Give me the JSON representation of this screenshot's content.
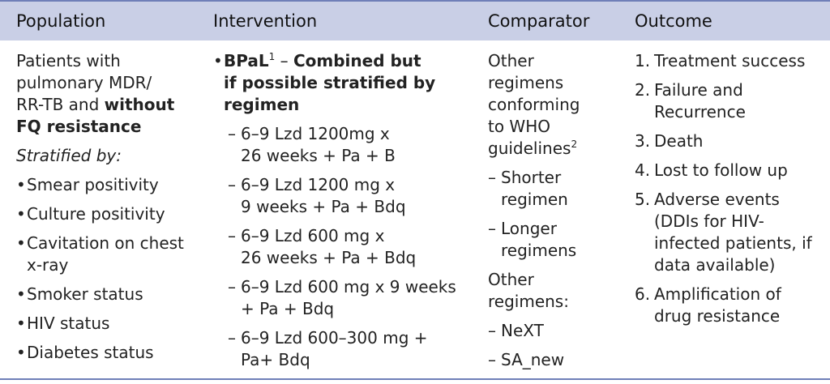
{
  "headers": [
    "Population",
    "Intervention",
    "Comparator",
    "Outcome"
  ],
  "population": {
    "intro": [
      "Patients with",
      "pulmonary MDR/",
      "RR-TB and "
    ],
    "intro_bold_1": "without",
    "intro_bold_2": "FQ resistance",
    "stratified": "Stratified by:",
    "strata": [
      "Smear positivity",
      "Culture positivity",
      "Cavitation on chest",
      "Smoker status",
      "HIV status",
      "Diabetes status"
    ],
    "strata_cont": "x-ray"
  },
  "intervention": {
    "title": "BPaL",
    "title_sup": "1",
    "title_dash": " – ",
    "title_bold": [
      "Combined but",
      "if possible stratified by",
      "regimen"
    ],
    "items": [
      [
        "6–9 Lzd 1200mg x",
        "26 weeks + Pa + B"
      ],
      [
        "6–9 Lzd 1200 mg x",
        "9 weeks + Pa + Bdq"
      ],
      [
        "6–9 Lzd 600 mg x",
        "26 weeks + Pa + Bdq"
      ],
      [
        "6–9 Lzd 600 mg x 9 weeks",
        "+ Pa + Bdq"
      ],
      [
        "6–9 Lzd 600–300 mg +",
        "Pa+ Bdq"
      ]
    ]
  },
  "comparator": {
    "lines": [
      "Other",
      "regimens",
      "conforming",
      "to WHO",
      "guidelines"
    ],
    "sup": "2",
    "items_1": [
      [
        "Shorter",
        "regimen"
      ],
      [
        "Longer",
        "regimens"
      ]
    ],
    "other": [
      "Other",
      "regimens:"
    ],
    "items_2": [
      "NeXT",
      "SA_new"
    ]
  },
  "outcome": {
    "items": [
      [
        "1.",
        "Treatment success"
      ],
      [
        "2.",
        "Failure and",
        "Recurrence"
      ],
      [
        "3.",
        "Death"
      ],
      [
        "4.",
        "Lost to follow up"
      ],
      [
        "5.",
        "Adverse events",
        "(DDIs for HIV-",
        "infected patients, if",
        "data available)"
      ],
      [
        "6.",
        "Amplification of",
        "drug resistance"
      ]
    ]
  },
  "colors": {
    "header_bg": "#c9cfe6",
    "rule": "#6f7fb8"
  },
  "markers": {
    "bullet": "•",
    "dash": "–"
  }
}
